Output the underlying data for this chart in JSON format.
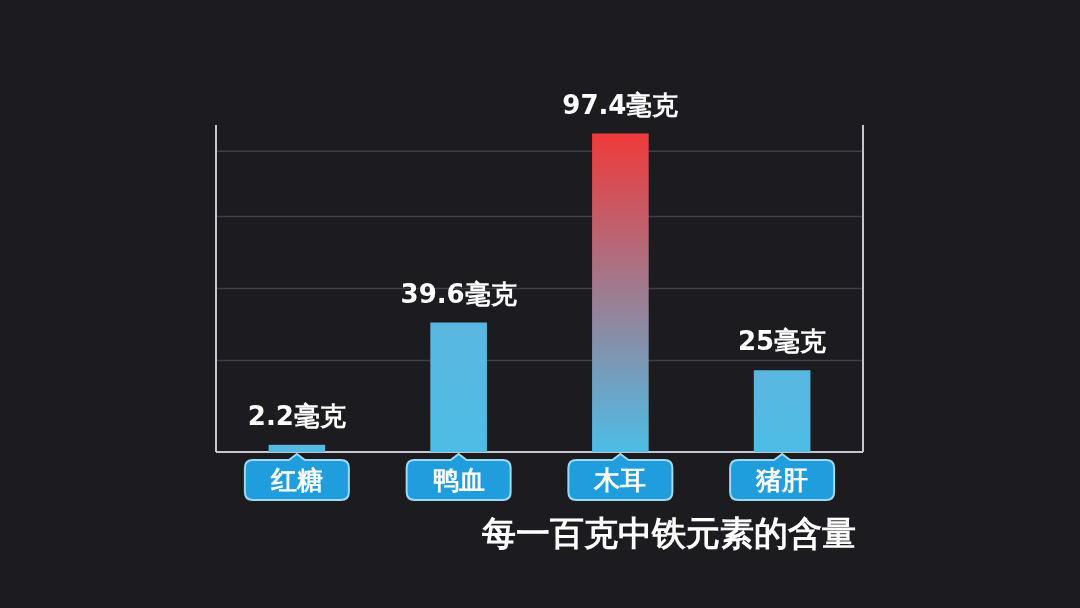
{
  "chart_data": {
    "type": "bar",
    "title": "每一百克中铁元素的含量",
    "categories": [
      "红糖",
      "鸭血",
      "木耳",
      "猪肝"
    ],
    "values": [
      2.2,
      39.6,
      97.4,
      25
    ],
    "colors": [
      "#5ab6df",
      "#5ab6df",
      "#ef3a3a",
      "#5ab6df"
    ],
    "value_labels": [
      "2.2毫克",
      "39.6毫克",
      "97.4毫克",
      "25毫克"
    ],
    "ylim": [
      0,
      100
    ],
    "yticks": [
      {
        "value": 28,
        "label": null
      },
      {
        "value": 50,
        "label": null
      },
      {
        "value": 72,
        "label": null
      },
      {
        "value": 92,
        "label": null
      }
    ],
    "grid": "y",
    "tick_labels": "x"
  }
}
